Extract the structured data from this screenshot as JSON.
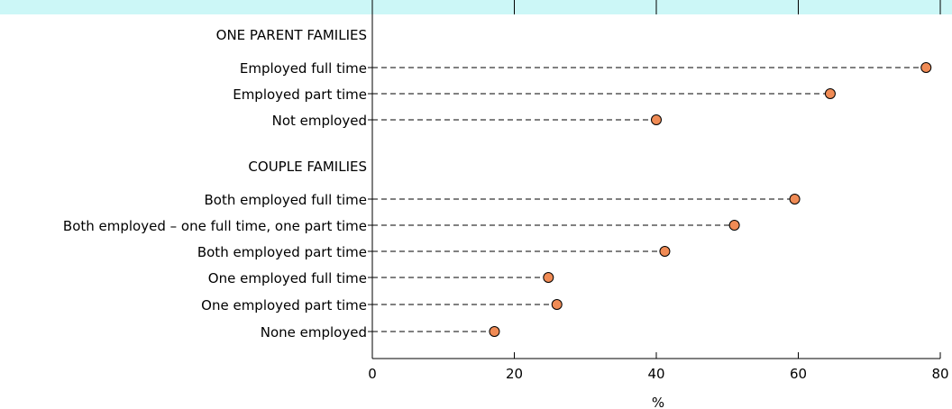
{
  "colors": {
    "top_band": "#ccf7f7",
    "marker_fill": "#f08b55",
    "marker_stroke": "#000000",
    "leader": "#000000",
    "axis": "#000000"
  },
  "chart_data": {
    "type": "scatter",
    "style": "dot plot with dashed leader lines",
    "xlabel": "%",
    "xlim": [
      0,
      80
    ],
    "xticks": [
      0,
      20,
      40,
      60,
      80
    ],
    "grid": false,
    "groups": [
      {
        "label": "ONE PARENT FAMILIES",
        "rows": [
          {
            "label": "Employed full time",
            "value": 78
          },
          {
            "label": "Employed part time",
            "value": 64.5
          },
          {
            "label": "Not employed",
            "value": 40
          }
        ]
      },
      {
        "label": "COUPLE FAMILIES",
        "rows": [
          {
            "label": "Both employed full time",
            "value": 59.5
          },
          {
            "label": "Both employed – one full time, one part time",
            "value": 51
          },
          {
            "label": "Both employed part time",
            "value": 41.2
          },
          {
            "label": "One employed full time",
            "value": 24.8
          },
          {
            "label": "One employed part time",
            "value": 26
          },
          {
            "label": "None employed",
            "value": 17.2
          }
        ]
      }
    ]
  }
}
